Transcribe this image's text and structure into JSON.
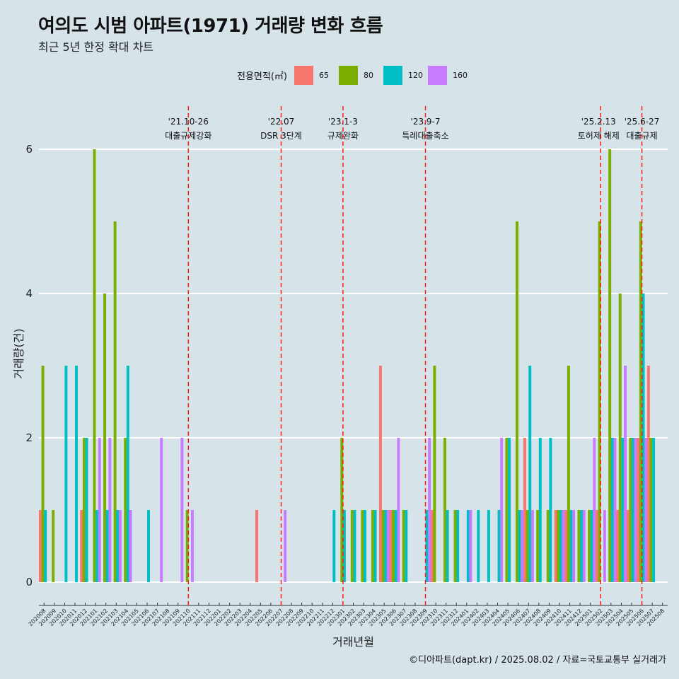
{
  "title": "여의도 시범 아파트(1971) 거래량 변화 흐름",
  "subtitle": "최근 5년 한정 확대 차트",
  "caption": "©디아파트(dapt.kr) / 2025.08.02 / 자료=국토교통부 실거래가",
  "legend": {
    "title": "전용면적(㎡)",
    "items": [
      {
        "label": "65",
        "color": "#f8766d"
      },
      {
        "label": "80",
        "color": "#7cae00"
      },
      {
        "label": "120",
        "color": "#00bfc4"
      },
      {
        "label": "160",
        "color": "#c77cff"
      }
    ]
  },
  "chart_data": {
    "type": "bar",
    "xlabel": "거래년월",
    "ylabel": "거래량(건)",
    "ylim": [
      0,
      6.5
    ],
    "yticks": [
      0,
      2,
      4,
      6
    ],
    "grid": true,
    "legend_position": "top",
    "categories": [
      "202008",
      "202009",
      "202010",
      "202011",
      "202012",
      "202101",
      "202102",
      "202103",
      "202104",
      "202105",
      "202106",
      "202107",
      "202108",
      "202109",
      "202110",
      "202111",
      "202112",
      "202201",
      "202202",
      "202203",
      "202204",
      "202205",
      "202206",
      "202207",
      "202208",
      "202209",
      "202210",
      "202211",
      "202212",
      "202301",
      "202302",
      "202303",
      "202304",
      "202305",
      "202306",
      "202307",
      "202308",
      "202309",
      "202310",
      "202311",
      "202312",
      "202401",
      "202402",
      "202403",
      "202404",
      "202405",
      "202406",
      "202407",
      "202408",
      "202409",
      "202410",
      "202411",
      "202412",
      "202501",
      "202502",
      "202503",
      "202504",
      "202505",
      "202506",
      "202507",
      "202508"
    ],
    "series": [
      {
        "name": "65",
        "color": "#f8766d",
        "values": [
          1,
          0,
          0,
          0,
          1,
          0,
          0,
          0,
          0,
          0,
          0,
          0,
          0,
          0,
          0,
          0,
          0,
          0,
          0,
          0,
          0,
          1,
          0,
          0,
          0,
          0,
          0,
          0,
          0,
          0,
          0,
          0,
          0,
          3,
          1,
          0,
          0,
          0,
          1,
          0,
          0,
          0,
          0,
          0,
          0,
          0,
          0,
          2,
          0,
          0,
          1,
          1,
          0,
          0,
          1,
          0,
          1,
          1,
          2,
          3,
          0
        ]
      },
      {
        "name": "80",
        "color": "#7cae00",
        "values": [
          3,
          1,
          0,
          0,
          2,
          6,
          4,
          5,
          2,
          0,
          0,
          0,
          0,
          0,
          1,
          0,
          0,
          0,
          0,
          0,
          0,
          0,
          0,
          0,
          0,
          0,
          0,
          0,
          0,
          2,
          1,
          1,
          1,
          1,
          1,
          1,
          0,
          0,
          3,
          2,
          1,
          0,
          0,
          0,
          0,
          2,
          5,
          1,
          1,
          1,
          1,
          3,
          1,
          1,
          5,
          6,
          4,
          2,
          5,
          2,
          0
        ]
      },
      {
        "name": "120",
        "color": "#00bfc4",
        "values": [
          1,
          0,
          3,
          3,
          2,
          1,
          1,
          1,
          3,
          0,
          1,
          0,
          0,
          0,
          0,
          0,
          0,
          0,
          0,
          0,
          0,
          0,
          0,
          0,
          0,
          0,
          0,
          0,
          1,
          1,
          1,
          1,
          1,
          1,
          1,
          1,
          0,
          1,
          0,
          1,
          1,
          1,
          1,
          1,
          1,
          2,
          1,
          3,
          2,
          2,
          1,
          1,
          1,
          1,
          0,
          2,
          2,
          2,
          4,
          2,
          0
        ]
      },
      {
        "name": "160",
        "color": "#c77cff",
        "values": [
          0,
          0,
          0,
          0,
          0,
          2,
          2,
          1,
          1,
          0,
          0,
          2,
          0,
          2,
          1,
          0,
          0,
          0,
          0,
          0,
          0,
          0,
          0,
          1,
          0,
          0,
          0,
          0,
          0,
          0,
          0,
          0,
          0,
          1,
          2,
          0,
          0,
          2,
          0,
          0,
          0,
          1,
          0,
          0,
          2,
          0,
          1,
          1,
          0,
          0,
          1,
          1,
          1,
          2,
          1,
          2,
          3,
          2,
          2,
          0,
          0
        ]
      }
    ],
    "annotations": [
      {
        "label_top": "'21.10-26",
        "label_bottom": "대출규제강화",
        "x": "202110"
      },
      {
        "label_top": "'22.07",
        "label_bottom": "DSR 3단계",
        "x": "202207"
      },
      {
        "label_top": "'23.1-3",
        "label_bottom": "규제완화",
        "x": "202301"
      },
      {
        "label_top": "'23.9-7",
        "label_bottom": "특례대출축소",
        "x": "202309"
      },
      {
        "label_top": "'25.2.13",
        "label_bottom": "토허제 해제",
        "x": "202502"
      },
      {
        "label_top": "'25.6-27",
        "label_bottom": "대출규제",
        "x": "202506"
      }
    ]
  }
}
